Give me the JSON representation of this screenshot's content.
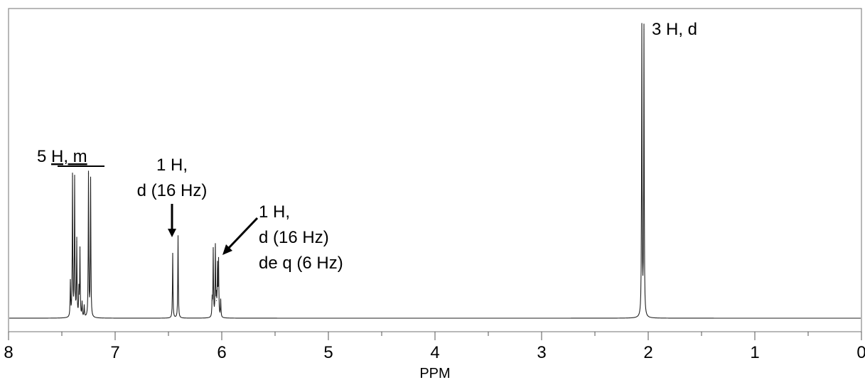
{
  "chart_data": {
    "type": "line",
    "xlabel": "PPM",
    "ylabel": "",
    "xlim": [
      8,
      0
    ],
    "x_reversed": true,
    "ylim": [
      0,
      1
    ],
    "grid": false,
    "x_ticks": [
      "8",
      "7",
      "6",
      "5",
      "4",
      "3",
      "2",
      "1",
      "0"
    ],
    "peaks": [
      {
        "ppm": 7.42,
        "height": 0.12
      },
      {
        "ppm": 7.4,
        "height": 0.48
      },
      {
        "ppm": 7.38,
        "height": 0.47
      },
      {
        "ppm": 7.36,
        "height": 0.26
      },
      {
        "ppm": 7.34,
        "height": 0.09
      },
      {
        "ppm": 7.33,
        "height": 0.23
      },
      {
        "ppm": 7.31,
        "height": 0.05
      },
      {
        "ppm": 7.29,
        "height": 0.04
      },
      {
        "ppm": 7.25,
        "height": 0.49
      },
      {
        "ppm": 7.23,
        "height": 0.47
      },
      {
        "ppm": 6.46,
        "height": 0.22
      },
      {
        "ppm": 6.41,
        "height": 0.28
      },
      {
        "ppm": 6.09,
        "height": 0.06
      },
      {
        "ppm": 6.08,
        "height": 0.23
      },
      {
        "ppm": 6.06,
        "height": 0.24
      },
      {
        "ppm": 6.05,
        "height": 0.06
      },
      {
        "ppm": 6.04,
        "height": 0.17
      },
      {
        "ppm": 6.03,
        "height": 0.19
      },
      {
        "ppm": 6.01,
        "height": 0.06
      },
      {
        "ppm": 2.06,
        "height": 1.0
      },
      {
        "ppm": 2.04,
        "height": 0.98
      }
    ],
    "annotations": [
      {
        "id": "aromatic",
        "lines": [
          "5 H, m"
        ]
      },
      {
        "id": "vinyl1",
        "lines": [
          "1 H,",
          "d (16 Hz)"
        ]
      },
      {
        "id": "vinyl2",
        "lines": [
          "1 H,",
          "d (16 Hz)",
          "de q (6 Hz)"
        ]
      },
      {
        "id": "methyl",
        "lines": [
          "3 H, d"
        ]
      }
    ]
  }
}
